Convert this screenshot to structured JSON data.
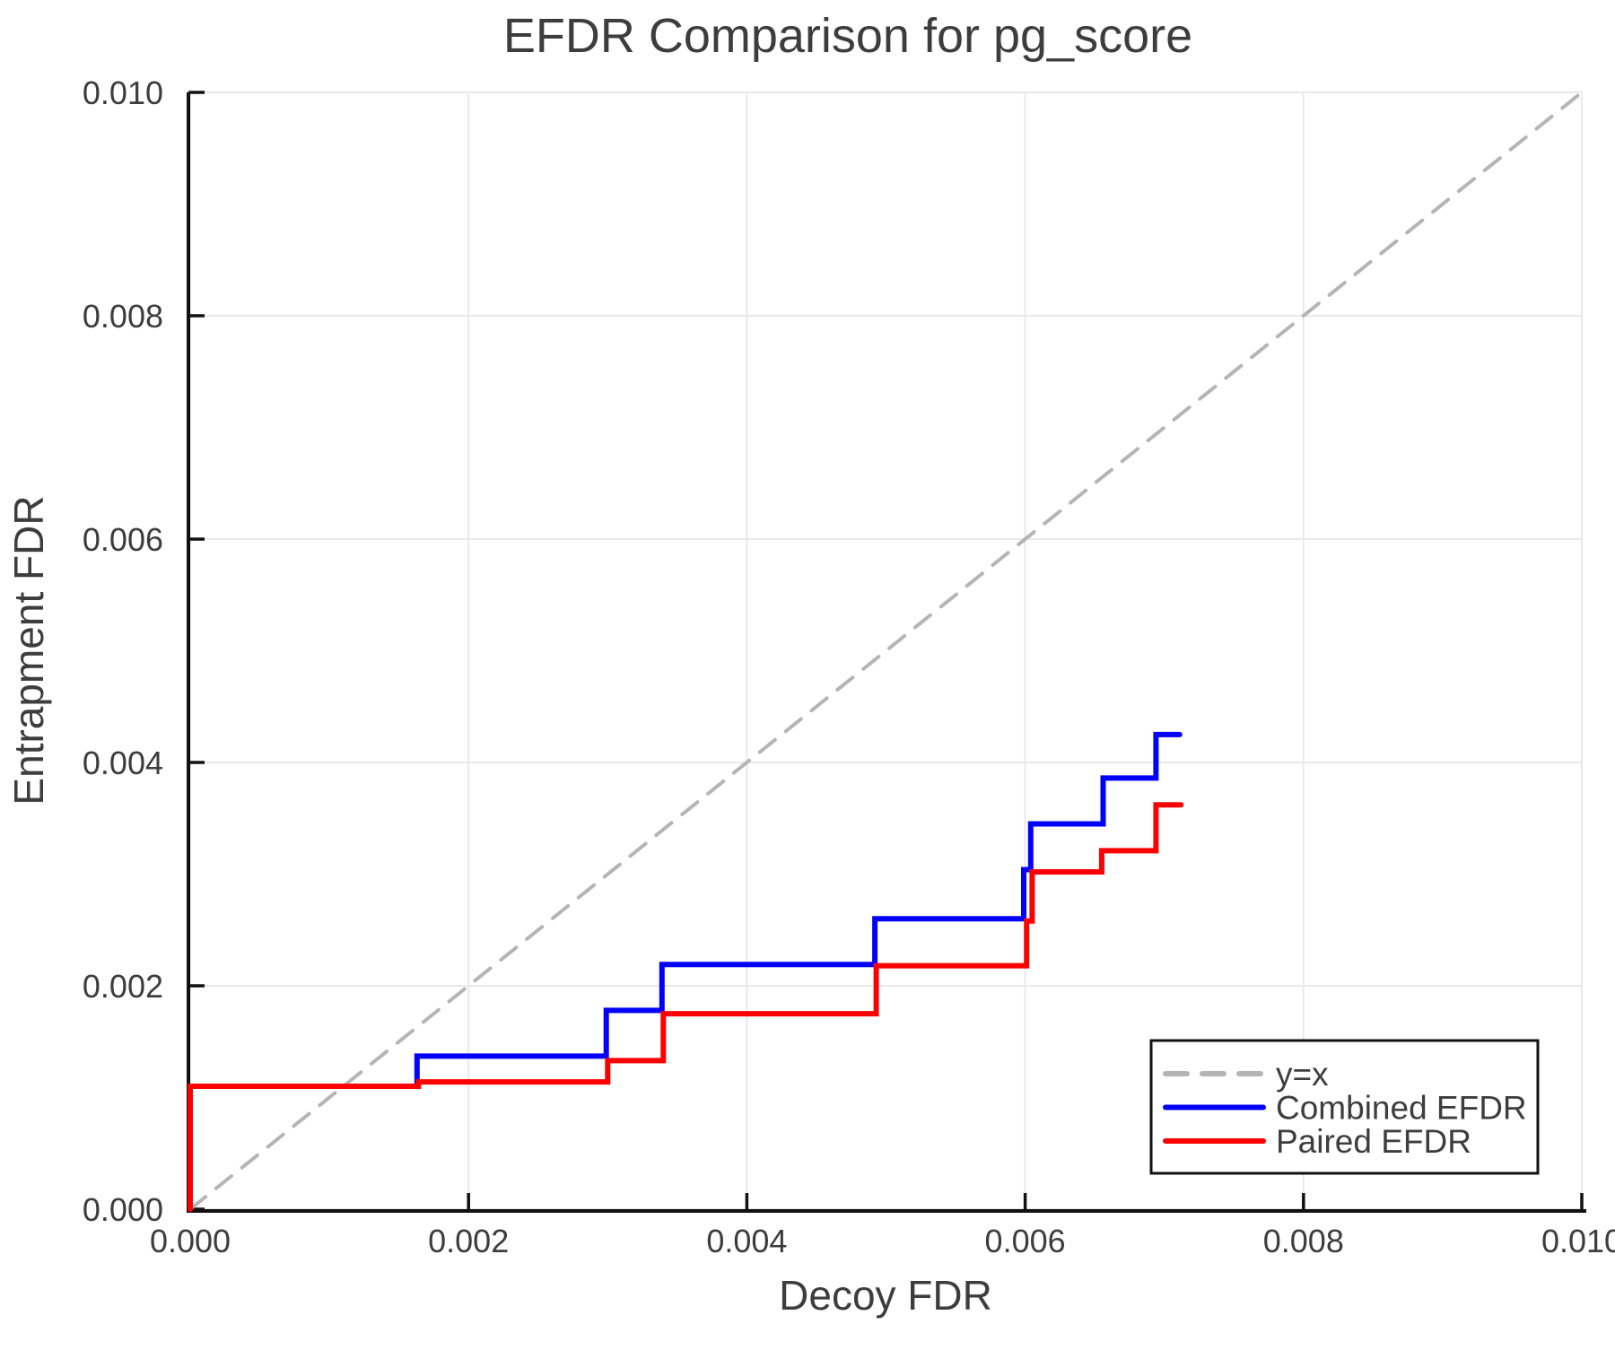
{
  "title": "EFDR Comparison for pg_score",
  "legend": {
    "items": [
      {
        "label": "y=x",
        "color": "#b5b5b5",
        "style": "dashed"
      },
      {
        "label": "Combined EFDR",
        "color": "#0202fa",
        "style": "solid"
      },
      {
        "label": "Paired EFDR",
        "color": "#fa0202",
        "style": "solid"
      }
    ]
  },
  "colors": {
    "text": "#3d3d3d",
    "axis": "#111111",
    "grid": "#e9e9e9",
    "background": "#ffffff",
    "legend_border": "#111111"
  },
  "chart_data": {
    "type": "line",
    "title": "EFDR Comparison for pg_score",
    "xlabel": "Decoy FDR",
    "ylabel": "Entrapment FDR",
    "xlim": [
      0.0,
      0.01
    ],
    "ylim": [
      0.0,
      0.01
    ],
    "x_ticks": [
      0.0,
      0.002,
      0.004,
      0.006,
      0.008,
      0.01
    ],
    "x_tick_labels": [
      "0.000",
      "0.002",
      "0.004",
      "0.006",
      "0.008",
      "0.010"
    ],
    "y_ticks": [
      0.0,
      0.002,
      0.004,
      0.006,
      0.008,
      0.01
    ],
    "y_tick_labels": [
      "0.000",
      "0.002",
      "0.004",
      "0.006",
      "0.008",
      "0.010"
    ],
    "grid": true,
    "legend_position": "lower right",
    "series": [
      {
        "name": "y=x",
        "color": "#b5b5b5",
        "style": "dashed",
        "width": 4,
        "points": [
          [
            0.0,
            0.0
          ],
          [
            0.01,
            0.01
          ]
        ]
      },
      {
        "name": "Combined EFDR",
        "color": "#0202fa",
        "style": "solid",
        "width": 6,
        "points": [
          [
            0.0,
            0.0
          ],
          [
            0.0,
            0.0011
          ],
          [
            0.00163,
            0.0011
          ],
          [
            0.00163,
            0.00137
          ],
          [
            0.00299,
            0.00137
          ],
          [
            0.00299,
            0.00178
          ],
          [
            0.00339,
            0.00178
          ],
          [
            0.00339,
            0.00219
          ],
          [
            0.00492,
            0.00219
          ],
          [
            0.00492,
            0.0026
          ],
          [
            0.00599,
            0.0026
          ],
          [
            0.00599,
            0.00304
          ],
          [
            0.00604,
            0.00304
          ],
          [
            0.00604,
            0.00345
          ],
          [
            0.00656,
            0.00345
          ],
          [
            0.00656,
            0.00386
          ],
          [
            0.00694,
            0.00386
          ],
          [
            0.00694,
            0.00425
          ],
          [
            0.00711,
            0.00425
          ]
        ]
      },
      {
        "name": "Paired EFDR",
        "color": "#fa0202",
        "style": "solid",
        "width": 6,
        "points": [
          [
            0.0,
            0.0
          ],
          [
            0.0,
            0.0011
          ],
          [
            0.00164,
            0.0011
          ],
          [
            0.00164,
            0.00114
          ],
          [
            0.003,
            0.00114
          ],
          [
            0.003,
            0.00133
          ],
          [
            0.0034,
            0.00133
          ],
          [
            0.0034,
            0.00175
          ],
          [
            0.00493,
            0.00175
          ],
          [
            0.00493,
            0.00218
          ],
          [
            0.00601,
            0.00218
          ],
          [
            0.00601,
            0.00258
          ],
          [
            0.00605,
            0.00258
          ],
          [
            0.00605,
            0.00302
          ],
          [
            0.00655,
            0.00302
          ],
          [
            0.00655,
            0.00321
          ],
          [
            0.00694,
            0.00321
          ],
          [
            0.00694,
            0.00362
          ],
          [
            0.00712,
            0.00362
          ]
        ]
      }
    ]
  }
}
